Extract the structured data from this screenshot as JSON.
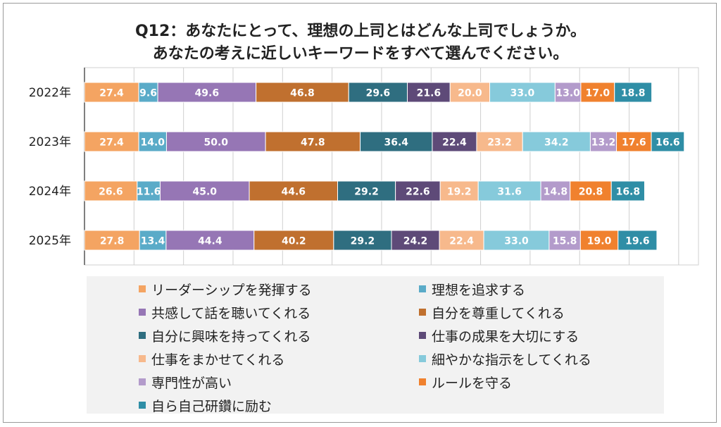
{
  "title": {
    "line1": "Q12：あなたにとって、理想の上司とはどんな上司でしょうか。",
    "line2": "あなたの考えに近しいキーワードをすべて選んでください。"
  },
  "chart_data": {
    "type": "bar",
    "orientation": "horizontal-stacked",
    "categories": [
      "2022年",
      "2023年",
      "2024年",
      "2025年"
    ],
    "series": [
      {
        "name": "リーダーシップを発揮する",
        "color": "#F4A462",
        "values": [
          27.4,
          27.4,
          26.6,
          27.8
        ]
      },
      {
        "name": "理想を追求する",
        "color": "#5AABC8",
        "values": [
          9.6,
          14.0,
          11.6,
          13.4
        ]
      },
      {
        "name": "共感して話を聴いてくれる",
        "color": "#9676B5",
        "values": [
          49.6,
          50.0,
          45.0,
          44.4
        ]
      },
      {
        "name": "自分を尊重してくれる",
        "color": "#C0702F",
        "values": [
          46.8,
          47.8,
          44.6,
          40.2
        ]
      },
      {
        "name": "自分に興味を持ってくれる",
        "color": "#2F6E80",
        "values": [
          29.6,
          36.4,
          29.2,
          29.2
        ]
      },
      {
        "name": "仕事の成果を大切にする",
        "color": "#5E4A78",
        "values": [
          21.6,
          22.4,
          22.6,
          24.2
        ]
      },
      {
        "name": "仕事をまかせてくれる",
        "color": "#F7B98C",
        "values": [
          20.0,
          23.2,
          19.2,
          22.4
        ]
      },
      {
        "name": "細やかな指示をしてくれる",
        "color": "#86CADB",
        "values": [
          33.0,
          34.2,
          31.6,
          33.0
        ]
      },
      {
        "name": "専門性が高い",
        "color": "#B39BCB",
        "values": [
          13.0,
          13.2,
          14.8,
          15.8
        ]
      },
      {
        "name": "ルールを守る",
        "color": "#F0812E",
        "values": [
          17.0,
          17.6,
          20.8,
          19.0
        ]
      },
      {
        "name": "自ら自己研鑽に励む",
        "color": "#2F8EA6",
        "values": [
          18.8,
          16.6,
          16.8,
          19.6
        ]
      }
    ],
    "xlim": [
      0,
      310
    ],
    "grid": true,
    "legend_position": "bottom"
  }
}
